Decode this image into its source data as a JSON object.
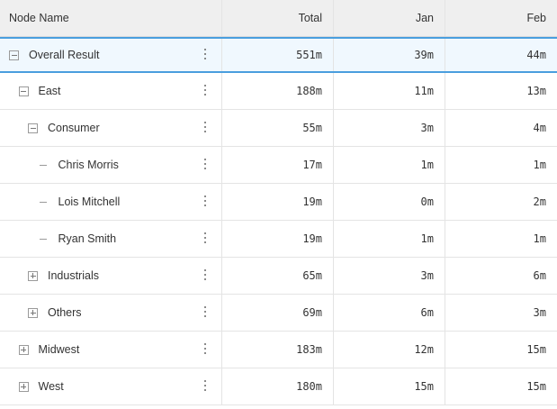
{
  "header": {
    "node_name": "Node Name",
    "total": "Total",
    "jan": "Jan",
    "feb": "Feb"
  },
  "rows": [
    {
      "label": "Overall Result",
      "total": "551m",
      "jan": "39m",
      "feb": "44m",
      "level": 0,
      "toggle": "minus",
      "selected": true
    },
    {
      "label": "East",
      "total": "188m",
      "jan": "11m",
      "feb": "13m",
      "level": 1,
      "toggle": "minus"
    },
    {
      "label": "Consumer",
      "total": "55m",
      "jan": "3m",
      "feb": "4m",
      "level": 2,
      "toggle": "minus"
    },
    {
      "label": "Chris Morris",
      "total": "17m",
      "jan": "1m",
      "feb": "1m",
      "level": 3,
      "toggle": "leaf"
    },
    {
      "label": "Lois Mitchell",
      "total": "19m",
      "jan": "0m",
      "feb": "2m",
      "level": 3,
      "toggle": "leaf"
    },
    {
      "label": "Ryan Smith",
      "total": "19m",
      "jan": "1m",
      "feb": "1m",
      "level": 3,
      "toggle": "leaf"
    },
    {
      "label": "Industrials",
      "total": "65m",
      "jan": "3m",
      "feb": "6m",
      "level": 2,
      "toggle": "plus"
    },
    {
      "label": "Others",
      "total": "69m",
      "jan": "6m",
      "feb": "3m",
      "level": 2,
      "toggle": "plus"
    },
    {
      "label": "Midwest",
      "total": "183m",
      "jan": "12m",
      "feb": "15m",
      "level": 1,
      "toggle": "plus"
    },
    {
      "label": "West",
      "total": "180m",
      "jan": "15m",
      "feb": "15m",
      "level": 1,
      "toggle": "plus"
    }
  ],
  "icons": {
    "expand": "plus-box-icon",
    "collapse": "minus-box-icon",
    "leaf": "leaf-dash-icon",
    "menu": "kebab-menu-icon"
  },
  "colors": {
    "selection_border": "#4a9ede",
    "selection_bg": "#f0f8fe",
    "header_bg": "#efefef"
  }
}
